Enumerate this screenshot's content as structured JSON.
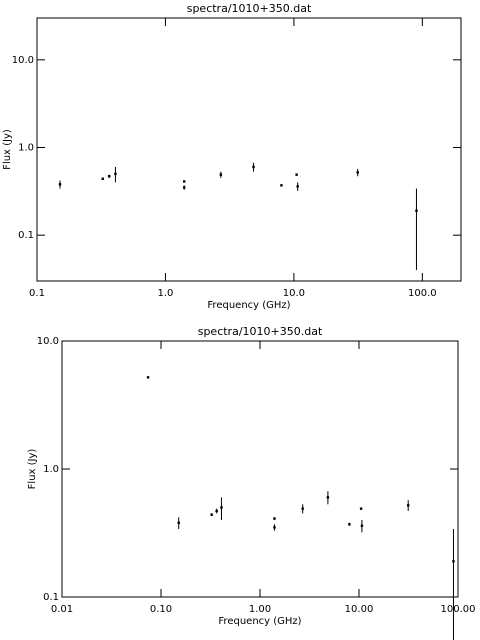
{
  "chart_data": [
    {
      "type": "scatter",
      "title": "spectra/1010+350.dat",
      "xlabel": "Frequency (GHz)",
      "ylabel": "Flux (Jy)",
      "log_x": true,
      "log_y": true,
      "color": "#000000",
      "x": [
        0.151,
        0.325,
        0.365,
        0.408,
        1.4,
        1.4,
        2.7,
        4.85,
        8.0,
        10.5,
        10.7,
        31.4,
        90
      ],
      "values": [
        0.38,
        0.44,
        0.47,
        0.5,
        0.41,
        0.35,
        0.49,
        0.6,
        0.37,
        0.49,
        0.36,
        0.52,
        0.19
      ],
      "errors": [
        0.04,
        0.01,
        0.02,
        0.1,
        0.01,
        0.02,
        0.04,
        0.07,
        0.01,
        0.01,
        0.04,
        0.05,
        0.15
      ],
      "xlim": [
        0.1,
        200
      ],
      "ylim": [
        0.03,
        30
      ],
      "xticks": [
        0.1,
        {
          "value": 1,
          "label": "1.0"
        },
        {
          "value": 10,
          "label": "10.0"
        },
        {
          "value": 100,
          "label": "100.0"
        }
      ],
      "yticks": [
        0.1,
        {
          "value": 1,
          "label": "1.0"
        },
        {
          "value": 10,
          "label": "10.0"
        }
      ]
    },
    {
      "type": "scatter",
      "title": "spectra/1010+350.dat",
      "xlabel": "Frequency (GHz)",
      "ylabel": "Flux (Jy)",
      "log_x": true,
      "log_y": true,
      "color": "#000000",
      "x": [
        0.074,
        0.151,
        0.325,
        0.365,
        0.408,
        1.4,
        1.4,
        2.7,
        4.85,
        8.0,
        10.5,
        10.7,
        31.4,
        90
      ],
      "values": [
        5.2,
        0.38,
        0.44,
        0.47,
        0.5,
        0.41,
        0.35,
        0.49,
        0.6,
        0.37,
        0.49,
        0.36,
        0.52,
        0.19
      ],
      "errors": [
        0.05,
        0.04,
        0.01,
        0.02,
        0.1,
        0.01,
        0.02,
        0.04,
        0.07,
        0.01,
        0.01,
        0.04,
        0.05,
        0.15
      ],
      "xlim": [
        0.01,
        100
      ],
      "ylim": [
        0.1,
        10
      ],
      "xticks": [
        0.01,
        {
          "value": 0.1,
          "label": "0.10"
        },
        {
          "value": 1,
          "label": "1.00"
        },
        {
          "value": 10,
          "label": "10.00"
        },
        {
          "value": 100,
          "label": "100.00"
        }
      ],
      "yticks": [
        0.1,
        {
          "value": 1,
          "label": "1.0"
        },
        {
          "value": 10,
          "label": "10.0"
        }
      ]
    }
  ]
}
